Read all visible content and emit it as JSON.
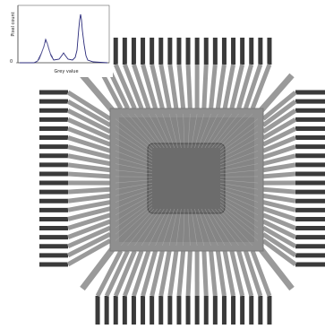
{
  "histogram": {
    "y_axis_label": "Pixel count",
    "x_axis_label": "Grey value",
    "y_tick_label": "0"
  },
  "scene": {
    "pins_per_side": 20
  },
  "colors": {
    "background": "#ffffff",
    "lead": "#9a9a9a",
    "pad": "#3a3a3a",
    "package": "#8c8c8c",
    "die": "#666666",
    "curve": "#2a2a7a"
  }
}
